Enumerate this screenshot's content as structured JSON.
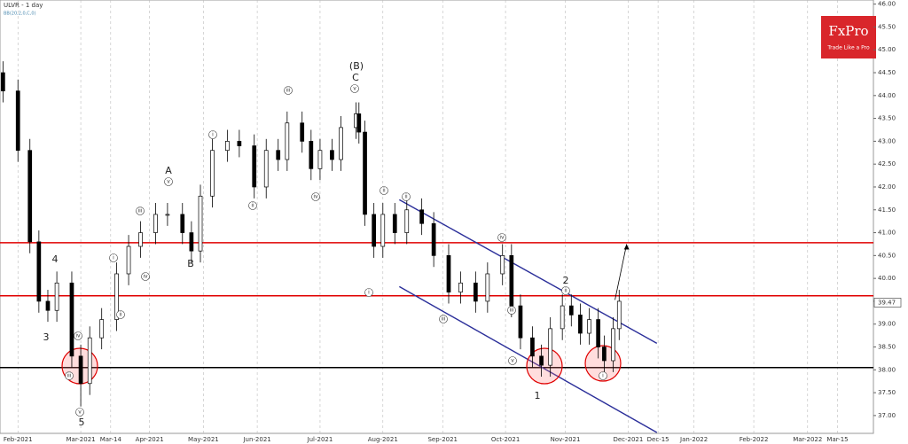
{
  "chart_data": {
    "type": "candlestick",
    "title": "ULVR - 1 day",
    "subtitle": "BB(20,2,0,C,0)",
    "logo": {
      "brand": "FxPro",
      "tagline": "Trade Like a Pro"
    },
    "xlim": [
      0,
      292
    ],
    "xticks": [
      {
        "value": 6,
        "label": "Feb-2021"
      },
      {
        "value": 27,
        "label": "Mar-2021"
      },
      {
        "value": 37,
        "label": "Mar-14"
      },
      {
        "value": 50,
        "label": "Apr-2021"
      },
      {
        "value": 68,
        "label": "May-2021"
      },
      {
        "value": 86,
        "label": "Jun-2021"
      },
      {
        "value": 107,
        "label": "Jul-2021"
      },
      {
        "value": 128,
        "label": "Aug-2021"
      },
      {
        "value": 148,
        "label": "Sep-2021"
      },
      {
        "value": 169,
        "label": "Oct-2021"
      },
      {
        "value": 189,
        "label": "Nov-2021"
      },
      {
        "value": 210,
        "label": "Dec-2021"
      },
      {
        "value": 220,
        "label": "Dec-15"
      },
      {
        "value": 232,
        "label": "Jan-2022"
      },
      {
        "value": 252,
        "label": "Feb-2022"
      },
      {
        "value": 270,
        "label": "Mar-2022"
      },
      {
        "value": 280,
        "label": "Mar-15"
      }
    ],
    "ylim": [
      36.61,
      46.09
    ],
    "yticks": [
      {
        "value": 37,
        "label": "37.00"
      },
      {
        "value": 37.5,
        "label": "37.50"
      },
      {
        "value": 38,
        "label": "38.00"
      },
      {
        "value": 38.5,
        "label": "38.50"
      },
      {
        "value": 39,
        "label": "39.00"
      },
      {
        "value": 39.5,
        "label": "39.50"
      },
      {
        "value": 40,
        "label": "40.00"
      },
      {
        "value": 40.5,
        "label": "40.50"
      },
      {
        "value": 41,
        "label": "41.00"
      },
      {
        "value": 41.5,
        "label": "41.50"
      },
      {
        "value": 42,
        "label": "42.00"
      },
      {
        "value": 42.5,
        "label": "42.50"
      },
      {
        "value": 43,
        "label": "43.00"
      },
      {
        "value": 43.5,
        "label": "43.50"
      },
      {
        "value": 44,
        "label": "44.00"
      },
      {
        "value": 44.5,
        "label": "44.50"
      },
      {
        "value": 45,
        "label": "45.00"
      },
      {
        "value": 45.5,
        "label": "45.50"
      },
      {
        "value": 46,
        "label": "46.00"
      }
    ],
    "grid": true,
    "x": [
      1,
      6,
      10,
      13,
      16,
      19,
      24,
      27,
      30,
      34,
      39,
      43,
      47,
      52,
      56,
      61,
      64,
      67,
      71,
      76,
      80,
      85,
      89,
      93,
      96,
      101,
      104,
      107,
      111,
      114,
      119,
      120,
      122,
      125,
      128,
      132,
      136,
      141,
      145,
      150,
      154,
      159,
      163,
      168,
      171,
      174,
      178,
      181,
      184,
      188,
      191,
      194,
      197,
      200,
      202,
      205,
      207
    ],
    "open": [
      44.5,
      44.1,
      42.8,
      40.8,
      39.5,
      39.3,
      39.9,
      38.3,
      37.7,
      38.7,
      39.1,
      40.1,
      40.7,
      41.0,
      41.4,
      41.4,
      41.0,
      40.6,
      41.8,
      42.8,
      43.0,
      42.9,
      42.0,
      42.8,
      42.6,
      43.4,
      43.0,
      42.4,
      42.8,
      42.6,
      43.3,
      43.6,
      43.2,
      41.4,
      40.7,
      41.4,
      41.0,
      41.5,
      41.2,
      40.5,
      39.7,
      39.9,
      39.5,
      40.1,
      40.5,
      39.4,
      38.7,
      38.3,
      38.1,
      38.9,
      39.4,
      39.2,
      38.8,
      39.1,
      38.5,
      38.2,
      38.9
    ],
    "high": [
      44.75,
      44.35,
      43.05,
      41.05,
      39.75,
      40.15,
      40.15,
      38.55,
      38.95,
      39.35,
      40.35,
      40.95,
      41.25,
      41.65,
      41.65,
      41.65,
      41.25,
      42.05,
      43.05,
      43.25,
      43.25,
      43.15,
      43.05,
      43.05,
      43.65,
      43.65,
      43.25,
      43.05,
      43.05,
      43.55,
      43.85,
      43.85,
      43.45,
      41.65,
      41.65,
      41.65,
      41.75,
      41.75,
      41.45,
      40.75,
      40.15,
      40.15,
      40.35,
      40.75,
      40.75,
      39.65,
      38.95,
      38.55,
      39.15,
      39.65,
      39.65,
      39.45,
      39.35,
      39.35,
      38.75,
      39.15,
      39.75
    ],
    "low": [
      43.85,
      42.55,
      40.55,
      39.25,
      39.05,
      39.05,
      38.05,
      37.2,
      37.45,
      38.45,
      38.85,
      39.85,
      40.45,
      40.75,
      41.15,
      40.75,
      40.35,
      40.35,
      41.55,
      42.55,
      42.65,
      41.75,
      41.75,
      42.35,
      42.35,
      42.75,
      42.15,
      42.15,
      42.35,
      42.35,
      43.05,
      42.95,
      41.15,
      40.45,
      40.45,
      40.75,
      40.75,
      40.95,
      40.25,
      39.45,
      39.45,
      39.25,
      39.25,
      39.85,
      39.15,
      38.45,
      38.05,
      37.85,
      37.85,
      38.65,
      38.95,
      38.55,
      38.55,
      38.25,
      37.95,
      37.95,
      38.65
    ],
    "close": [
      44.1,
      42.8,
      40.8,
      39.5,
      39.3,
      39.9,
      38.3,
      37.7,
      38.7,
      39.1,
      40.1,
      40.7,
      41.0,
      41.4,
      41.4,
      41.0,
      40.6,
      41.8,
      42.8,
      43.0,
      42.9,
      42.0,
      42.8,
      42.6,
      43.4,
      43.0,
      42.4,
      42.8,
      42.6,
      43.3,
      43.6,
      43.2,
      41.4,
      40.7,
      41.4,
      41.0,
      41.5,
      41.2,
      40.5,
      39.7,
      39.9,
      39.5,
      40.1,
      40.5,
      39.4,
      38.7,
      38.3,
      38.1,
      38.9,
      39.4,
      39.2,
      38.8,
      39.1,
      38.5,
      38.2,
      38.9,
      39.5
    ],
    "last_price": {
      "value": 39.47,
      "label": "39.47"
    },
    "levels": [
      {
        "value": 40.78,
        "color": "#e00000"
      },
      {
        "value": 39.62,
        "color": "#e00000"
      },
      {
        "value": 38.05,
        "color": "#000000"
      }
    ],
    "channel": {
      "color": "#2b2f9a",
      "x": [
        133.5,
        219.6
      ],
      "upper": [
        41.72,
        38.58
      ],
      "lower": [
        39.82,
        36.63
      ]
    },
    "arrow": {
      "x": [
        205.6,
        209.5
      ],
      "y": [
        39.53,
        40.75
      ]
    },
    "waves": [
      "4",
      "3",
      "5",
      "A",
      "B",
      "(B)",
      "C",
      "1",
      "2"
    ],
    "minor_waves": [
      "iii",
      "iv",
      "v",
      "i",
      "ii",
      "iii",
      "iv",
      "v",
      "i",
      "ii",
      "iii",
      "iv",
      "v",
      "ii",
      "ii",
      "i",
      "iii",
      "iv",
      "v",
      "iii",
      "ii",
      "i"
    ]
  }
}
